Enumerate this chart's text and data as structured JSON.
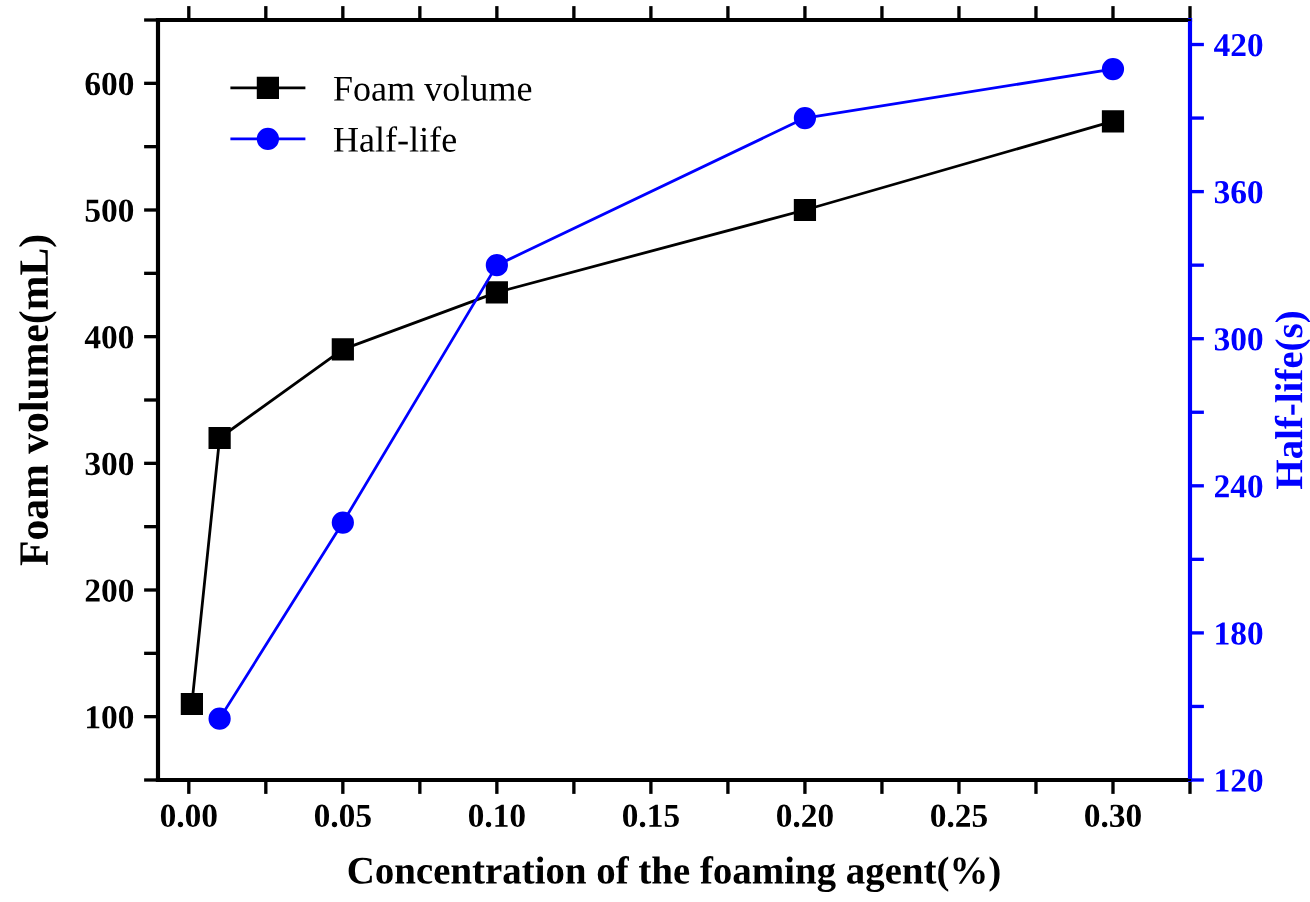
{
  "chart_data": {
    "type": "line",
    "xlabel": "Concentration of the foaming agent(%)",
    "ylabel": "Foam volume(mL)",
    "y2label": "Half-life(s)",
    "xlim": [
      -0.01,
      0.325
    ],
    "xticks": [
      {
        "value": 0.0,
        "label": "0.00"
      },
      {
        "value": 0.025,
        "label": null
      },
      {
        "value": 0.05,
        "label": "0.05"
      },
      {
        "value": 0.075,
        "label": null
      },
      {
        "value": 0.1,
        "label": "0.10"
      },
      {
        "value": 0.125,
        "label": null
      },
      {
        "value": 0.15,
        "label": "0.15"
      },
      {
        "value": 0.175,
        "label": null
      },
      {
        "value": 0.2,
        "label": "0.20"
      },
      {
        "value": 0.225,
        "label": null
      },
      {
        "value": 0.25,
        "label": "0.25"
      },
      {
        "value": 0.275,
        "label": null
      },
      {
        "value": 0.3,
        "label": "0.30"
      },
      {
        "value": 0.325,
        "label": null
      }
    ],
    "ylim": [
      50,
      650
    ],
    "yticks": [
      {
        "value": 50,
        "label": null
      },
      100,
      {
        "value": 150,
        "label": null
      },
      200,
      {
        "value": 250,
        "label": null
      },
      300,
      {
        "value": 350,
        "label": null
      },
      400,
      {
        "value": 450,
        "label": null
      },
      500,
      {
        "value": 550,
        "label": null
      },
      600,
      {
        "value": 650,
        "label": null
      }
    ],
    "y2lim": [
      120,
      430
    ],
    "y2ticks": [
      120,
      {
        "value": 150,
        "label": null
      },
      180,
      {
        "value": 210,
        "label": null
      },
      240,
      {
        "value": 270,
        "label": null
      },
      300,
      {
        "value": 330,
        "label": null
      },
      360,
      {
        "value": 390,
        "label": null
      },
      420
    ],
    "legend": "top left",
    "grid": false,
    "series": [
      {
        "name": "Foam volume",
        "color": "#000000",
        "marker": "square",
        "x": [
          0.001,
          0.01,
          0.05,
          0.1,
          0.2,
          0.3
        ],
        "values": [
          110,
          320,
          390,
          435,
          500,
          570
        ]
      },
      {
        "name": "Half-life",
        "color": "#0000ff",
        "marker": "circle",
        "axis": "y2",
        "x": [
          0.01,
          0.05,
          0.1,
          0.2,
          0.3
        ],
        "values": [
          145,
          225,
          330,
          390,
          410
        ]
      }
    ]
  }
}
